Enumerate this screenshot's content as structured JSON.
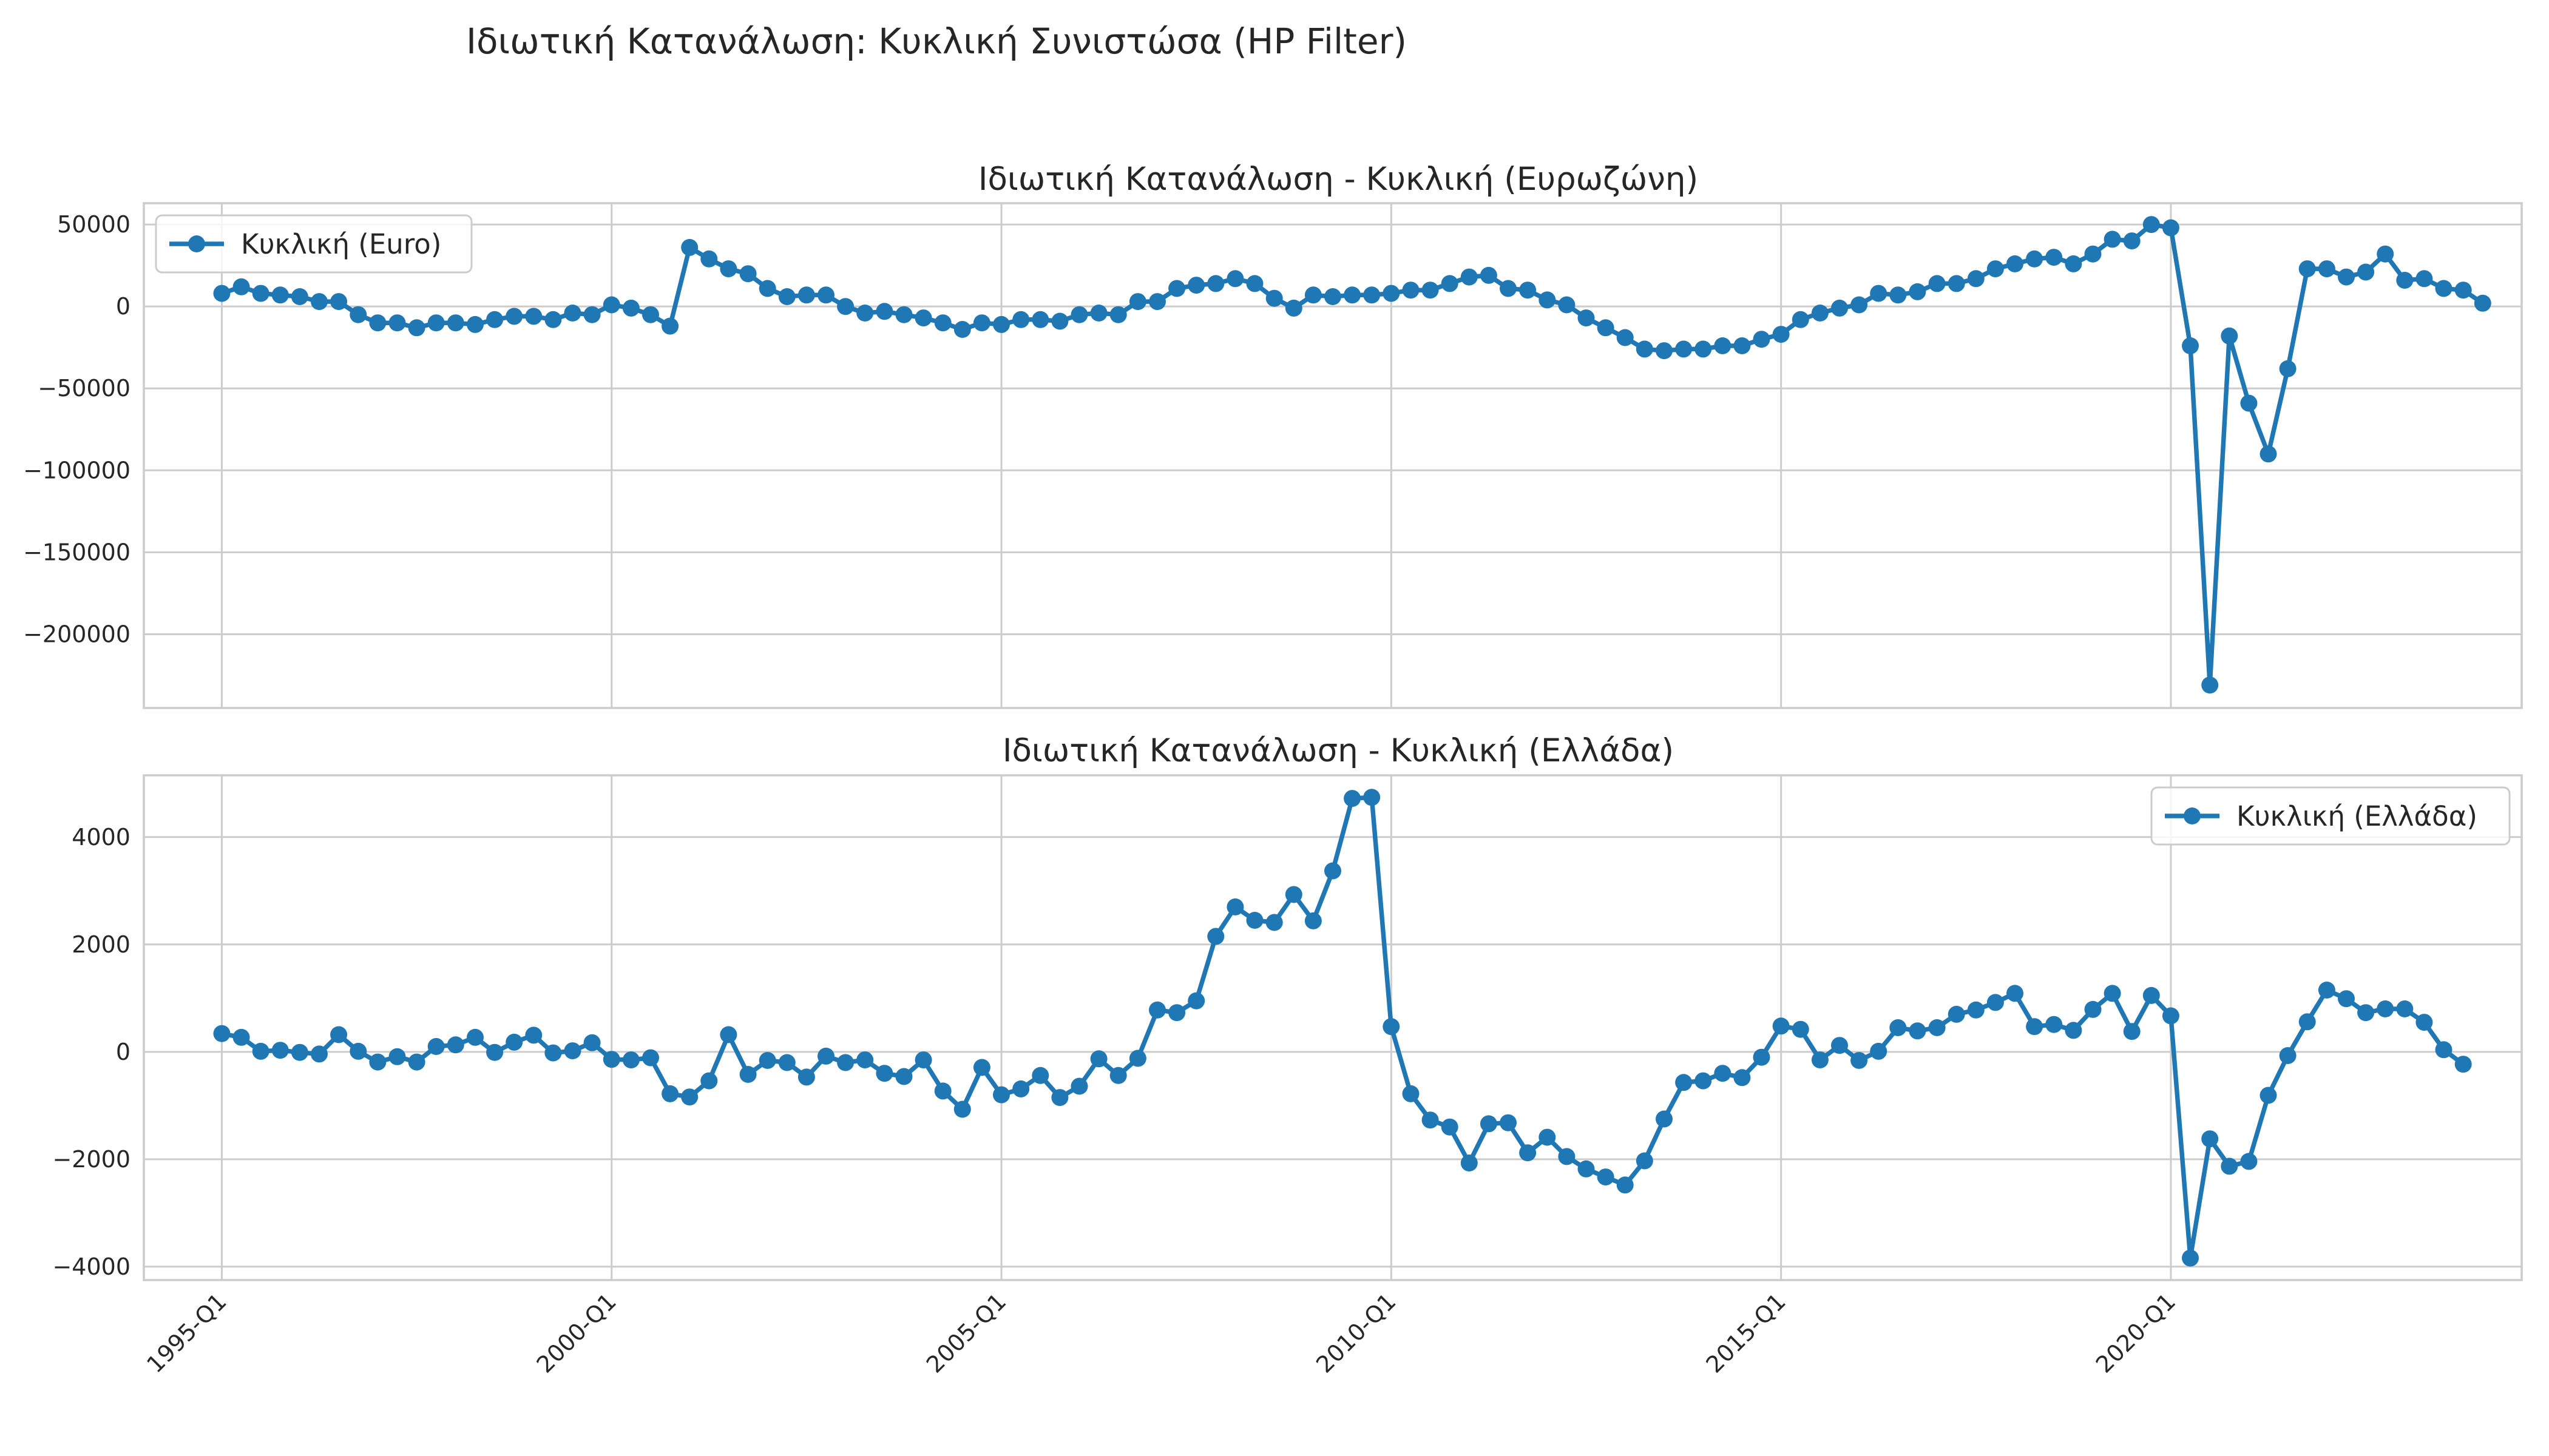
{
  "figure": {
    "suptitle": "Ιδιωτική Κατανάλωση: Κυκλική Συνιστώσα (HP Filter)",
    "series_color": "#1f77b4",
    "grid_color": "#cccccc"
  },
  "chart_data": [
    {
      "type": "line",
      "title": "Ιδιωτική Κατανάλωση - Κυκλική (Ευρωζώνη)",
      "xlabel": "",
      "ylabel": "",
      "x_start": "1995-Q1",
      "x_end": "2023-Q2",
      "xlim": [
        "1994-Q1",
        "2024-Q3"
      ],
      "ylim": [
        -245000,
        63000
      ],
      "yticks": [
        50000,
        0,
        -50000,
        -100000,
        -150000,
        -200000
      ],
      "ytick_labels": [
        "50000",
        "0",
        "−50000",
        "−100000",
        "−150000",
        "−200000"
      ],
      "xticks": [
        "1995-Q1",
        "2000-Q1",
        "2005-Q1",
        "2010-Q1",
        "2015-Q1",
        "2020-Q1"
      ],
      "show_xtick_labels": false,
      "grid": true,
      "legend": "upper left",
      "series": [
        {
          "name": "Κυκλική (Euro)",
          "color": "#1f77b4",
          "marker": "circle",
          "values": [
            8000,
            12000,
            8000,
            7000,
            6000,
            3000,
            3000,
            -5000,
            -10000,
            -10000,
            -13000,
            -10000,
            -10000,
            -11000,
            -8000,
            -6000,
            -6000,
            -8000,
            -4000,
            -5000,
            1000,
            -1000,
            -5000,
            -12000,
            36000,
            29000,
            23000,
            20000,
            11000,
            6000,
            7000,
            7000,
            0,
            -4000,
            -3000,
            -5000,
            -7000,
            -10000,
            -14000,
            -10000,
            -11000,
            -8000,
            -8000,
            -9000,
            -5000,
            -4000,
            -5000,
            3000,
            3000,
            11000,
            13000,
            14000,
            17000,
            14000,
            5000,
            -1000,
            7000,
            6000,
            7000,
            7000,
            8000,
            10000,
            10000,
            14000,
            18000,
            19000,
            11000,
            10000,
            4000,
            1000,
            -7000,
            -13000,
            -19000,
            -26000,
            -27000,
            -26000,
            -26000,
            -24000,
            -24000,
            -20000,
            -17000,
            -8000,
            -4000,
            -1000,
            1000,
            8000,
            7000,
            9000,
            14000,
            14000,
            17000,
            23000,
            26000,
            29000,
            30000,
            26000,
            32000,
            41000,
            40000,
            50000,
            48000,
            -24000,
            -231000,
            -18000,
            -59000,
            -90000,
            -38000,
            23000,
            23000,
            18000,
            21000,
            32000,
            16000,
            17000,
            11000,
            10000,
            2000
          ]
        }
      ]
    },
    {
      "type": "line",
      "title": "Ιδιωτική Κατανάλωση - Κυκλική (Ελλάδα)",
      "xlabel": "",
      "ylabel": "",
      "x_start": "1995-Q1",
      "x_end": "2023-Q2",
      "xlim": [
        "1994-Q1",
        "2024-Q3"
      ],
      "ylim": [
        -4250,
        5150
      ],
      "yticks": [
        4000,
        2000,
        0,
        -2000,
        -4000
      ],
      "ytick_labels": [
        "4000",
        "2000",
        "0",
        "−2000",
        "−4000"
      ],
      "xticks": [
        "1995-Q1",
        "2000-Q1",
        "2005-Q1",
        "2010-Q1",
        "2015-Q1",
        "2020-Q1"
      ],
      "show_xtick_labels": true,
      "grid": true,
      "legend": "upper right",
      "series": [
        {
          "name": "Κυκλική (Ελλάδα)",
          "color": "#1f77b4",
          "marker": "circle",
          "values": [
            340,
            270,
            10,
            30,
            -10,
            -40,
            320,
            10,
            -190,
            -90,
            -190,
            100,
            130,
            270,
            -10,
            180,
            310,
            -20,
            20,
            170,
            -140,
            -150,
            -110,
            -780,
            -840,
            -540,
            320,
            -420,
            -160,
            -200,
            -470,
            -80,
            -200,
            -150,
            -400,
            -460,
            -150,
            -730,
            -1070,
            -290,
            -800,
            -690,
            -440,
            -850,
            -640,
            -130,
            -440,
            -120,
            780,
            730,
            950,
            2150,
            2700,
            2450,
            2410,
            2930,
            2440,
            3370,
            4720,
            4740,
            470,
            -780,
            -1270,
            -1400,
            -2070,
            -1340,
            -1320,
            -1880,
            -1590,
            -1950,
            -2180,
            -2330,
            -2480,
            -2030,
            -1250,
            -570,
            -540,
            -400,
            -480,
            -100,
            480,
            420,
            -150,
            120,
            -160,
            10,
            450,
            390,
            450,
            700,
            780,
            920,
            1090,
            470,
            510,
            400,
            790,
            1090,
            380,
            1050,
            670,
            -3840,
            -1620,
            -2130,
            -2040,
            -810,
            -70,
            560,
            1150,
            990,
            730,
            800,
            800,
            550,
            40,
            -230
          ]
        }
      ]
    }
  ]
}
